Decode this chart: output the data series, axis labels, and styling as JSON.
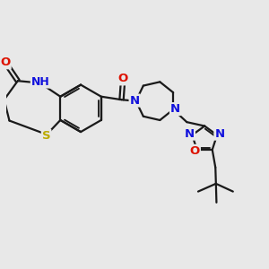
{
  "bg_color": "#e8e8e8",
  "bond_color": "#1a1a1a",
  "bond_width": 1.6,
  "atom_colors": {
    "O": "#dd1100",
    "N": "#1111dd",
    "S": "#bbaa00",
    "H": "#777777",
    "C": "#1a1a1a"
  },
  "font_size_atom": 9.5,
  "canvas_xlim": [
    0,
    10
  ],
  "canvas_ylim": [
    0,
    10
  ]
}
